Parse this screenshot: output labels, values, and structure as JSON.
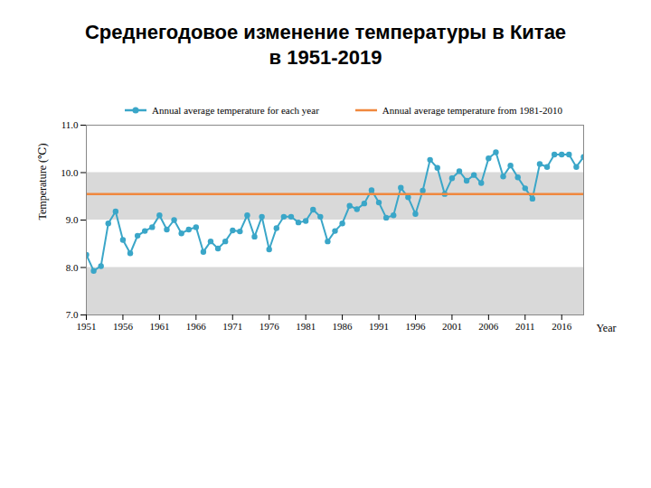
{
  "chart_data": {
    "type": "line",
    "title": "Среднегодовое изменение температуры в Китае",
    "subtitle": "в 1951-2019",
    "x_label": "Year",
    "y_label": "Temperature (℃)",
    "x": [
      1951,
      1952,
      1953,
      1954,
      1955,
      1956,
      1957,
      1958,
      1959,
      1960,
      1961,
      1962,
      1963,
      1964,
      1965,
      1966,
      1967,
      1968,
      1969,
      1970,
      1971,
      1972,
      1973,
      1974,
      1975,
      1976,
      1977,
      1978,
      1979,
      1980,
      1981,
      1982,
      1983,
      1984,
      1985,
      1986,
      1987,
      1988,
      1989,
      1990,
      1991,
      1992,
      1993,
      1994,
      1995,
      1996,
      1997,
      1998,
      1999,
      2000,
      2001,
      2002,
      2003,
      2004,
      2005,
      2006,
      2007,
      2008,
      2009,
      2010,
      2011,
      2012,
      2013,
      2014,
      2015,
      2016,
      2017,
      2018,
      2019
    ],
    "series": [
      {
        "name": "Annual average temperature for each year",
        "color": "#3aa6c8",
        "marker": "circle",
        "values": [
          8.27,
          7.93,
          8.03,
          8.93,
          9.18,
          8.58,
          8.3,
          8.67,
          8.77,
          8.85,
          9.1,
          8.8,
          9.0,
          8.72,
          8.8,
          8.85,
          8.33,
          8.55,
          8.4,
          8.55,
          8.78,
          8.76,
          9.1,
          8.65,
          9.07,
          8.38,
          8.83,
          9.07,
          9.07,
          8.95,
          8.98,
          9.22,
          9.07,
          8.55,
          8.77,
          8.93,
          9.3,
          9.23,
          9.35,
          9.63,
          9.37,
          9.05,
          9.1,
          9.68,
          9.48,
          9.13,
          9.62,
          10.27,
          10.1,
          9.55,
          9.88,
          10.03,
          9.83,
          9.95,
          9.78,
          10.3,
          10.43,
          9.92,
          10.15,
          9.9,
          9.67,
          9.45,
          10.18,
          10.12,
          10.38,
          10.38,
          10.38,
          10.12,
          10.33
        ]
      },
      {
        "name": "Annual average temperature from 1981-2010",
        "color": "#f0883e",
        "marker": "none",
        "values": [
          9.55,
          9.55,
          9.55,
          9.55,
          9.55,
          9.55,
          9.55,
          9.55,
          9.55,
          9.55,
          9.55,
          9.55,
          9.55,
          9.55,
          9.55,
          9.55,
          9.55,
          9.55,
          9.55,
          9.55,
          9.55,
          9.55,
          9.55,
          9.55,
          9.55,
          9.55,
          9.55,
          9.55,
          9.55,
          9.55,
          9.55,
          9.55,
          9.55,
          9.55,
          9.55,
          9.55,
          9.55,
          9.55,
          9.55,
          9.55,
          9.55,
          9.55,
          9.55,
          9.55,
          9.55,
          9.55,
          9.55,
          9.55,
          9.55,
          9.55,
          9.55,
          9.55,
          9.55,
          9.55,
          9.55,
          9.55,
          9.55,
          9.55,
          9.55,
          9.55,
          9.55,
          9.55,
          9.55,
          9.55,
          9.55,
          9.55,
          9.55,
          9.55,
          9.55
        ]
      }
    ],
    "xlim": [
      1951,
      2019
    ],
    "xticks": [
      1951,
      1956,
      1961,
      1966,
      1971,
      1976,
      1981,
      1986,
      1991,
      1996,
      2001,
      2006,
      2011,
      2016
    ],
    "ylim": [
      7,
      11
    ],
    "yticks": [
      {
        "value": 7,
        "label": "7.0"
      },
      {
        "value": 8,
        "label": "8.0"
      },
      {
        "value": 9,
        "label": "9.0"
      },
      {
        "value": 10,
        "label": "10.0"
      },
      {
        "value": 11,
        "label": "11.0"
      }
    ],
    "legend": "top"
  }
}
